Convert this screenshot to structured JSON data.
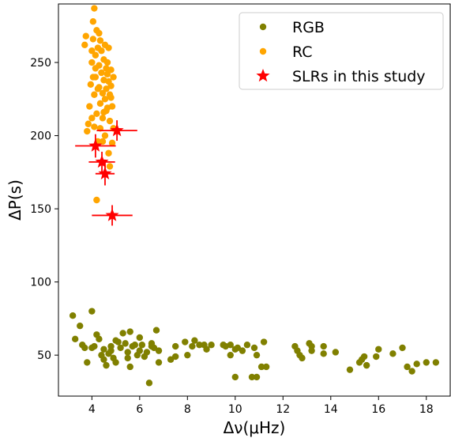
{
  "chart_data": {
    "type": "scatter",
    "xlabel": "Δν(μHz)",
    "ylabel": "ΔP(s)",
    "xlim": [
      2.6,
      19.0
    ],
    "ylim": [
      22,
      290
    ],
    "xticks": [
      4,
      6,
      8,
      10,
      12,
      14,
      16,
      18
    ],
    "yticks": [
      50,
      100,
      150,
      200,
      250
    ],
    "grid": false,
    "legend_position": "top-right",
    "colors": {
      "RGB": "#808000",
      "RC": "#FFA500",
      "SLR": "#FF0000"
    },
    "series": [
      {
        "name": "RGB",
        "marker": "circle",
        "points": [
          [
            3.2,
            77
          ],
          [
            3.3,
            61
          ],
          [
            3.5,
            70
          ],
          [
            3.6,
            57
          ],
          [
            3.7,
            55
          ],
          [
            3.8,
            45
          ],
          [
            4.0,
            80
          ],
          [
            4.0,
            55
          ],
          [
            4.1,
            56
          ],
          [
            4.2,
            64
          ],
          [
            4.3,
            61
          ],
          [
            4.4,
            50
          ],
          [
            4.5,
            54
          ],
          [
            4.5,
            47
          ],
          [
            4.6,
            43
          ],
          [
            4.7,
            51
          ],
          [
            4.8,
            56
          ],
          [
            4.8,
            53
          ],
          [
            4.9,
            48
          ],
          [
            5.0,
            45
          ],
          [
            5.0,
            60
          ],
          [
            5.1,
            59
          ],
          [
            5.2,
            55
          ],
          [
            5.3,
            65
          ],
          [
            5.4,
            58
          ],
          [
            5.5,
            52
          ],
          [
            5.5,
            48
          ],
          [
            5.6,
            42
          ],
          [
            5.6,
            66
          ],
          [
            5.7,
            56
          ],
          [
            5.8,
            57
          ],
          [
            5.9,
            50
          ],
          [
            6.0,
            62
          ],
          [
            6.0,
            53
          ],
          [
            6.1,
            57
          ],
          [
            6.2,
            49
          ],
          [
            6.3,
            52
          ],
          [
            6.4,
            31
          ],
          [
            6.5,
            56
          ],
          [
            6.5,
            58
          ],
          [
            6.6,
            55
          ],
          [
            6.7,
            67
          ],
          [
            6.8,
            53
          ],
          [
            6.8,
            45
          ],
          [
            7.3,
            47
          ],
          [
            7.5,
            49
          ],
          [
            7.5,
            56
          ],
          [
            7.9,
            59
          ],
          [
            8.0,
            50
          ],
          [
            8.2,
            56
          ],
          [
            8.3,
            60
          ],
          [
            8.5,
            57
          ],
          [
            8.7,
            57
          ],
          [
            8.8,
            54
          ],
          [
            9.0,
            57
          ],
          [
            9.5,
            57
          ],
          [
            9.6,
            56
          ],
          [
            9.8,
            57
          ],
          [
            9.8,
            50
          ],
          [
            10.0,
            54
          ],
          [
            10.0,
            35
          ],
          [
            10.1,
            55
          ],
          [
            10.3,
            53
          ],
          [
            10.5,
            57
          ],
          [
            10.7,
            35
          ],
          [
            10.8,
            55
          ],
          [
            10.9,
            50
          ],
          [
            10.9,
            35
          ],
          [
            11.1,
            42
          ],
          [
            11.2,
            59
          ],
          [
            11.3,
            42
          ],
          [
            12.5,
            56
          ],
          [
            12.6,
            53
          ],
          [
            12.7,
            50
          ],
          [
            12.8,
            48
          ],
          [
            13.1,
            58
          ],
          [
            13.2,
            56
          ],
          [
            13.2,
            53
          ],
          [
            13.7,
            51
          ],
          [
            13.7,
            56
          ],
          [
            14.2,
            52
          ],
          [
            14.8,
            40
          ],
          [
            15.2,
            45
          ],
          [
            15.3,
            47
          ],
          [
            15.4,
            49
          ],
          [
            15.5,
            43
          ],
          [
            15.9,
            49
          ],
          [
            16.0,
            54
          ],
          [
            16.6,
            51
          ],
          [
            17.0,
            55
          ],
          [
            17.2,
            42
          ],
          [
            17.4,
            39
          ],
          [
            17.6,
            44
          ],
          [
            18.0,
            45
          ],
          [
            18.4,
            45
          ]
        ]
      },
      {
        "name": "RC",
        "marker": "circle",
        "points": [
          [
            3.8,
            203
          ],
          [
            3.85,
            208
          ],
          [
            3.9,
            220
          ],
          [
            3.95,
            235
          ],
          [
            4.0,
            212
          ],
          [
            4.0,
            250
          ],
          [
            4.05,
            266
          ],
          [
            4.05,
            278
          ],
          [
            4.1,
            287
          ],
          [
            4.1,
            228
          ],
          [
            4.15,
            255
          ],
          [
            4.15,
            240
          ],
          [
            4.2,
            272
          ],
          [
            4.2,
            215
          ],
          [
            4.25,
            232
          ],
          [
            4.25,
            260
          ],
          [
            4.3,
            270
          ],
          [
            4.3,
            248
          ],
          [
            4.35,
            222
          ],
          [
            4.35,
            205
          ],
          [
            4.4,
            243
          ],
          [
            4.4,
            258
          ],
          [
            4.45,
            229
          ],
          [
            4.45,
            212
          ],
          [
            4.5,
            238
          ],
          [
            4.5,
            252
          ],
          [
            4.55,
            225
          ],
          [
            4.55,
            200
          ],
          [
            4.6,
            246
          ],
          [
            4.6,
            232
          ],
          [
            4.65,
            242
          ],
          [
            4.65,
            219
          ],
          [
            4.7,
            237
          ],
          [
            4.7,
            260
          ],
          [
            4.75,
            228
          ],
          [
            4.75,
            210
          ],
          [
            4.8,
            245
          ],
          [
            4.8,
            234
          ],
          [
            4.85,
            220
          ],
          [
            4.85,
            195
          ],
          [
            4.9,
            205
          ],
          [
            4.9,
            240
          ],
          [
            4.7,
            188
          ],
          [
            4.75,
            179
          ],
          [
            4.2,
            156
          ],
          [
            3.7,
            262
          ],
          [
            3.75,
            268
          ],
          [
            4.0,
            258
          ],
          [
            4.15,
            246
          ],
          [
            4.35,
            265
          ],
          [
            4.55,
            262
          ],
          [
            4.6,
            217
          ],
          [
            4.45,
            196
          ],
          [
            4.25,
            196
          ],
          [
            4.05,
            240
          ],
          [
            4.3,
            233
          ],
          [
            4.5,
            216
          ],
          [
            4.65,
            250
          ],
          [
            4.8,
            226
          ],
          [
            4.1,
            206
          ]
        ]
      },
      {
        "name": "SLRs in this study",
        "marker": "star",
        "points": [
          {
            "x": 5.05,
            "y": 203.5,
            "xerr": 0.85,
            "yerr": 7
          },
          {
            "x": 4.15,
            "y": 193,
            "xerr": 0.85,
            "yerr": 8
          },
          {
            "x": 4.42,
            "y": 182,
            "xerr": 0.55,
            "yerr": 7
          },
          {
            "x": 4.55,
            "y": 174,
            "xerr": 0.4,
            "yerr": 8
          },
          {
            "x": 4.85,
            "y": 145.5,
            "xerr": 0.85,
            "yerr": 7
          }
        ]
      }
    ]
  }
}
